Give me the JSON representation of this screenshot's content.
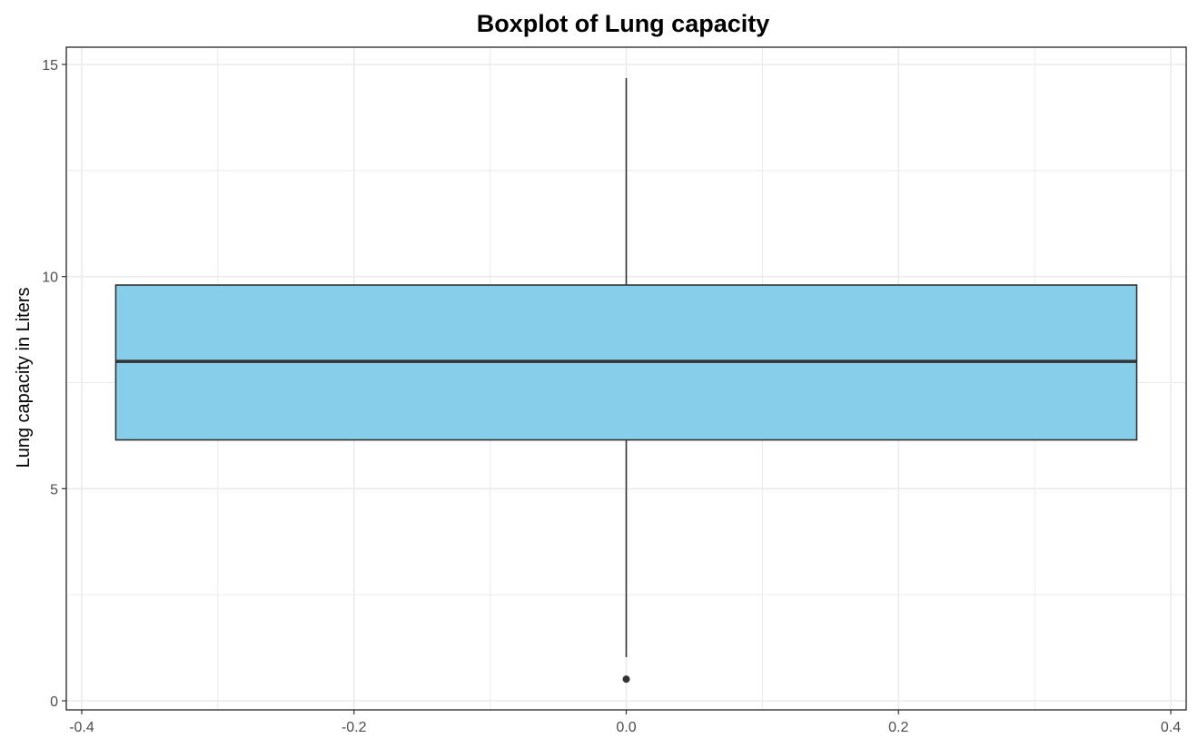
{
  "chart_data": {
    "type": "boxplot",
    "title": "Boxplot of Lung capacity",
    "xlabel": "",
    "ylabel": "Lung capacity in Liters",
    "xlim": [
      -0.4,
      0.4
    ],
    "ylim": [
      0,
      15
    ],
    "x_ticks": [
      -0.4,
      -0.2,
      0.0,
      0.2,
      0.4
    ],
    "x_tick_labels": [
      "-0.4",
      "-0.2",
      "0.0",
      "0.2",
      "0.4"
    ],
    "y_ticks": [
      0,
      5,
      10,
      15
    ],
    "y_tick_labels": [
      "0",
      "5",
      "10",
      "15"
    ],
    "grid": true,
    "box": {
      "x_center": 0.0,
      "x_min": -0.375,
      "x_max": 0.375,
      "whisker_low": 1.03,
      "q1": 6.15,
      "median": 8.0,
      "q3": 9.8,
      "whisker_high": 14.68,
      "outliers": [
        0.51
      ]
    }
  },
  "colors": {
    "box_fill": "#87CEEB",
    "box_stroke": "#333333",
    "median": "#333333",
    "grid": "#ebebeb",
    "panel_border": "#333333"
  }
}
